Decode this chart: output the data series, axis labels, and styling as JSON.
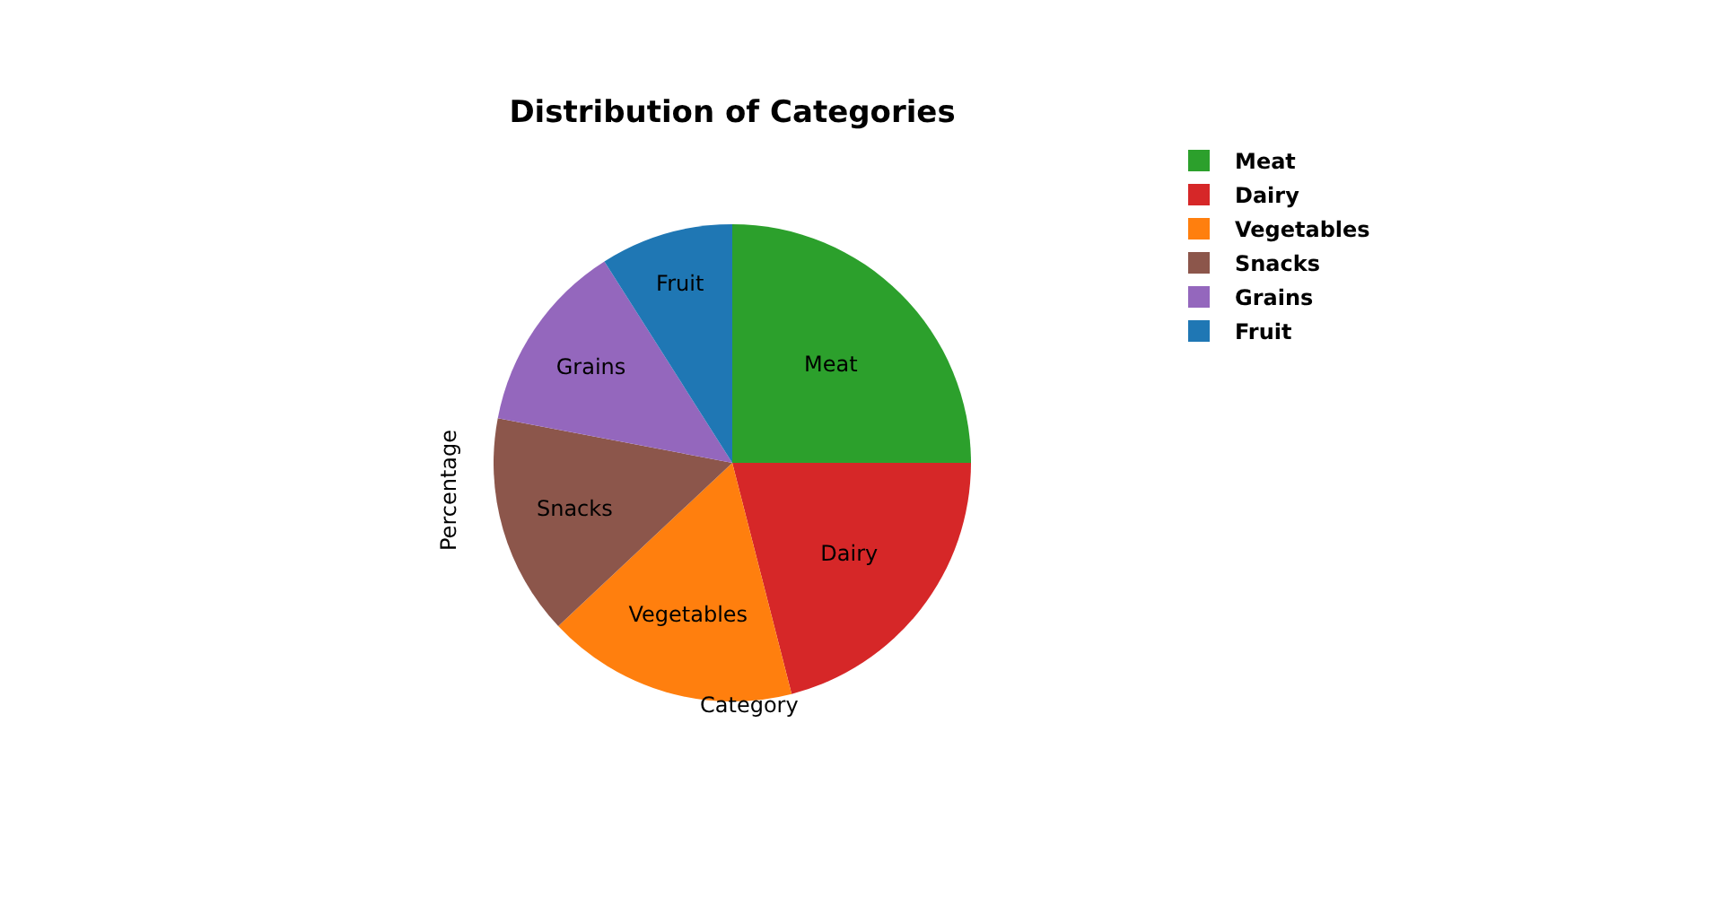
{
  "chart_data": {
    "type": "pie",
    "title": "Distribution of Categories",
    "xlabel": "Category",
    "ylabel": "Percentage",
    "categories": [
      "Meat",
      "Dairy",
      "Vegetables",
      "Snacks",
      "Grains",
      "Fruit"
    ],
    "values": [
      25,
      21,
      17,
      15,
      13,
      9
    ],
    "colors": [
      "#2ca02c",
      "#d62728",
      "#ff7f0e",
      "#8c564b",
      "#9467bd",
      "#1f77b4"
    ],
    "legend": "top right"
  }
}
